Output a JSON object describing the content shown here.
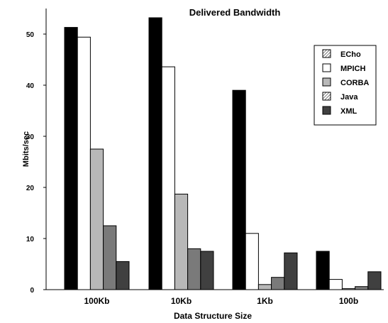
{
  "chart_data": {
    "type": "bar",
    "title": "Delivered Bandwidth",
    "xlabel": "Data Structure Size",
    "ylabel": "Mbits/sec",
    "ylim": [
      0,
      55
    ],
    "yticks": [
      0,
      10,
      20,
      30,
      40,
      50
    ],
    "categories": [
      "100Kb",
      "10Kb",
      "1Kb",
      "100b"
    ],
    "legend_position": "top-right",
    "series": [
      {
        "name": "ECho",
        "values": [
          51.3,
          53.2,
          39.0,
          7.5
        ],
        "color": "#000000"
      },
      {
        "name": "MPICH",
        "values": [
          49.4,
          43.6,
          11.0,
          2.0
        ],
        "color": "#ffffff"
      },
      {
        "name": "CORBA",
        "values": [
          27.5,
          18.7,
          1.0,
          0.2
        ],
        "color": "#b8b8b8"
      },
      {
        "name": "Java",
        "values": [
          12.5,
          8.0,
          2.4,
          0.6
        ],
        "color": "#7a7a7a"
      },
      {
        "name": "XML",
        "values": [
          5.5,
          7.5,
          7.2,
          3.5
        ],
        "color": "#404040"
      }
    ]
  }
}
